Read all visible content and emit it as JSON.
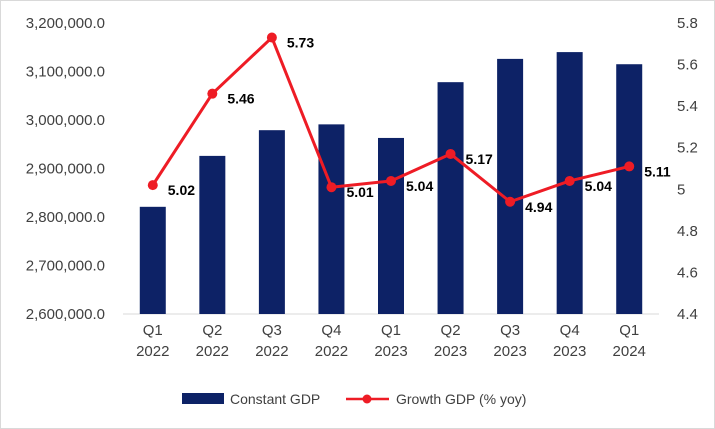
{
  "chart_data": {
    "type": "bar+line",
    "categories": [
      [
        "Q1",
        "2022"
      ],
      [
        "Q2",
        "2022"
      ],
      [
        "Q3",
        "2022"
      ],
      [
        "Q4",
        "2022"
      ],
      [
        "Q1",
        "2023"
      ],
      [
        "Q2",
        "2023"
      ],
      [
        "Q3",
        "2023"
      ],
      [
        "Q4",
        "2023"
      ],
      [
        "Q1",
        "2024"
      ]
    ],
    "series": [
      {
        "name": "Constant GDP",
        "type": "bar",
        "axis": "left",
        "color": "#0d2266",
        "values": [
          2821000,
          2926000,
          2979000,
          2991000,
          2963000,
          3078000,
          3126000,
          3140000,
          3115000
        ]
      },
      {
        "name": "Growth GDP (% yoy)",
        "type": "line",
        "axis": "right",
        "color": "#ee1c25",
        "values": [
          5.02,
          5.46,
          5.73,
          5.01,
          5.04,
          5.17,
          4.94,
          5.04,
          5.11
        ],
        "labels": [
          "5.02",
          "5.46",
          "5.73",
          "5.01",
          "5.04",
          "5.17",
          "4.94",
          "5.04",
          "5.11"
        ]
      }
    ],
    "y_left": {
      "min": 2600000,
      "max": 3200000,
      "ticks": [
        2600000,
        2700000,
        2800000,
        2900000,
        3000000,
        3100000,
        3200000
      ],
      "tick_labels": [
        "2,600,000.0",
        "2,700,000.0",
        "2,800,000.0",
        "2,900,000.0",
        "3,000,000.0",
        "3,100,000.0",
        "3,200,000.0"
      ]
    },
    "y_right": {
      "min": 4.4,
      "max": 5.8,
      "ticks": [
        4.4,
        4.6,
        4.8,
        5.0,
        5.2,
        5.4,
        5.6,
        5.8
      ],
      "tick_labels": [
        "4.4",
        "4.6",
        "4.8",
        "5",
        "5.2",
        "5.4",
        "5.6",
        "5.8"
      ]
    },
    "grid": false,
    "legend": {
      "position": "bottom",
      "entries": [
        "Constant GDP",
        "Growth GDP (% yoy)"
      ]
    }
  }
}
